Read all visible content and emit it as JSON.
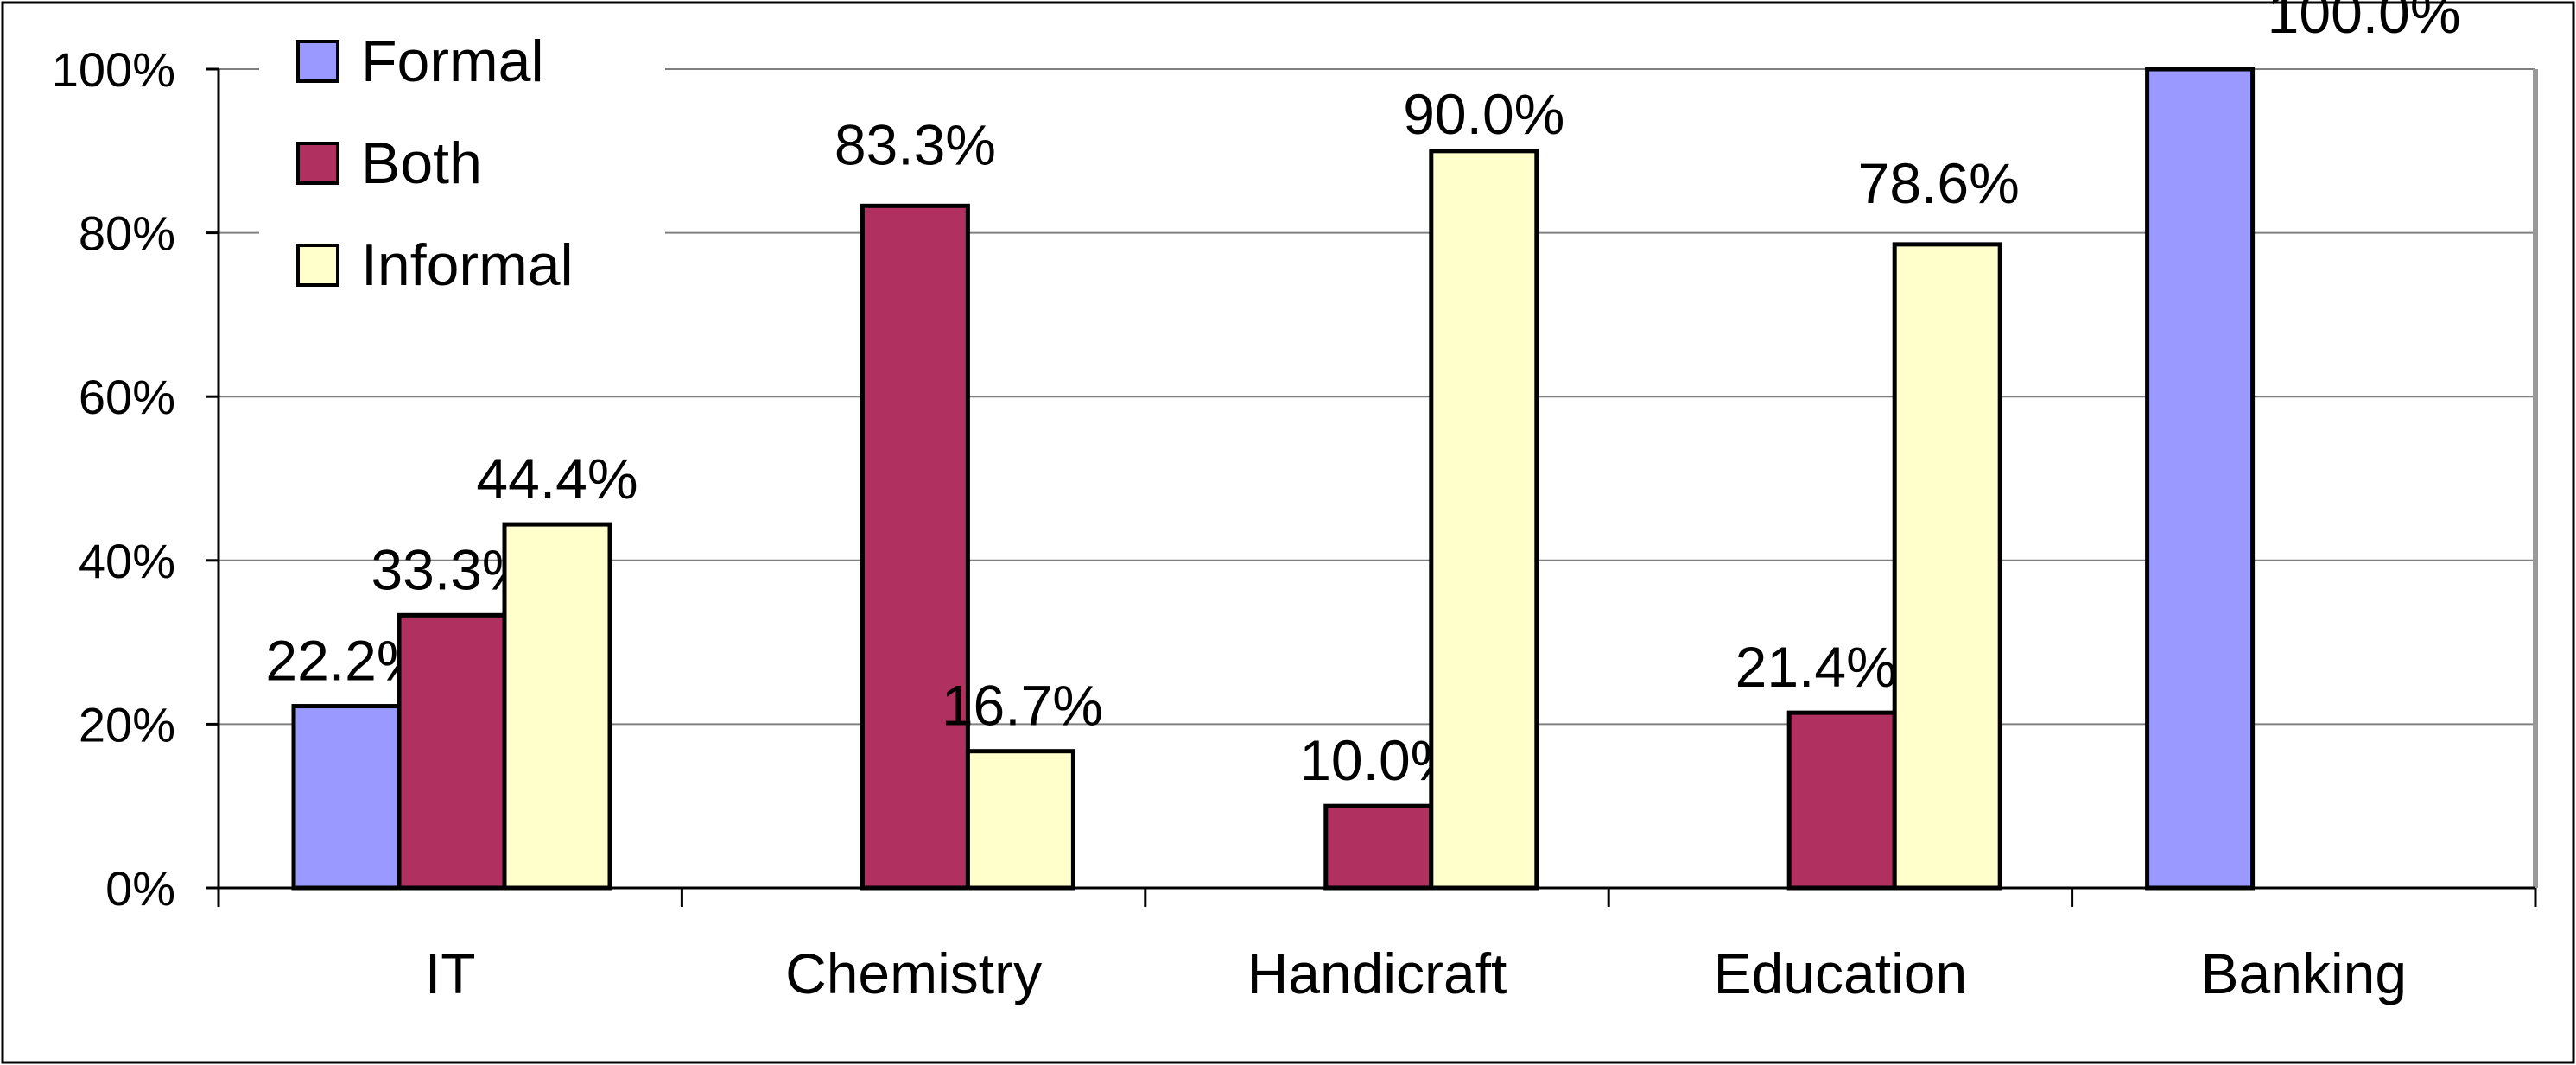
{
  "chart_data": {
    "type": "bar",
    "categories": [
      "IT",
      "Chemistry",
      "Handicraft",
      "Education",
      "Banking"
    ],
    "series": [
      {
        "name": "Formal",
        "color": "#9999ff",
        "values": [
          22.2,
          0,
          0,
          0,
          100.0
        ],
        "labels": [
          "22.2%",
          "",
          "",
          "",
          "100.0%"
        ]
      },
      {
        "name": "Both",
        "color": "#b03060",
        "values": [
          33.3,
          83.3,
          10.0,
          21.4,
          0
        ],
        "labels": [
          "33.3%",
          "83.3%",
          "10.0%",
          "21.4%",
          ""
        ]
      },
      {
        "name": "Informal",
        "color": "#ffffcc",
        "values": [
          44.4,
          16.7,
          90.0,
          78.6,
          0
        ],
        "labels": [
          "44.4%",
          "16.7%",
          "90.0%",
          "78.6%",
          ""
        ]
      }
    ],
    "ylim": [
      0,
      100
    ],
    "yticks": [
      0,
      20,
      40,
      60,
      80,
      100
    ],
    "ytick_labels": [
      "0%",
      "20%",
      "40%",
      "60%",
      "80%",
      "100%"
    ],
    "grid": true,
    "legend_position": "top-left"
  }
}
